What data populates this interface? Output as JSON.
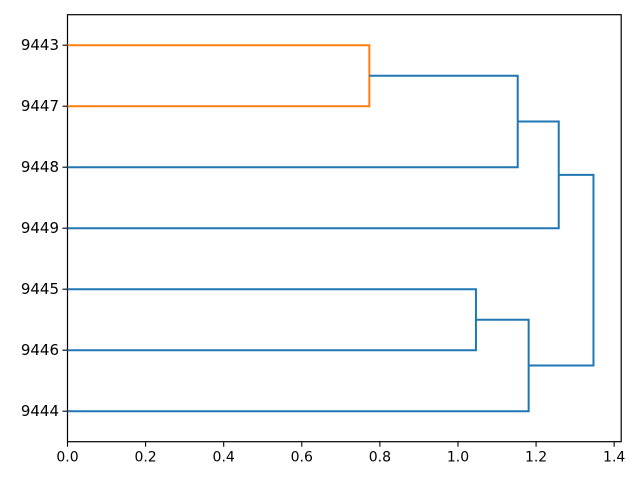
{
  "figure": {
    "background": "#ffffff",
    "title": ""
  },
  "chart_data": {
    "type": "dendrogram",
    "orientation": "right",
    "title": "",
    "xlabel": "",
    "ylabel": "",
    "grid": false,
    "legend": null,
    "xlim": [
      0,
      1.418
    ],
    "ylim": [
      0,
      70
    ],
    "x_ticks": {
      "values": [
        0.0,
        0.2,
        0.4,
        0.6,
        0.8,
        1.0,
        1.2,
        1.4
      ],
      "labels": [
        "0.0",
        "0.2",
        "0.4",
        "0.6",
        "0.8",
        "1.0",
        "1.2",
        "1.4"
      ]
    },
    "leaves": [
      {
        "label": "9443",
        "position": 65
      },
      {
        "label": "9447",
        "position": 55
      },
      {
        "label": "9448",
        "position": 45
      },
      {
        "label": "9449",
        "position": 35
      },
      {
        "label": "9445",
        "position": 25
      },
      {
        "label": "9446",
        "position": 15
      },
      {
        "label": "9444",
        "position": 5
      }
    ],
    "links": [
      {
        "name": "9443+9447",
        "x1": 0,
        "y1": 65,
        "x2": 0,
        "y2": 55,
        "distance": 0.773,
        "color": "#ff7f0e"
      },
      {
        "name": "9445+9446",
        "x1": 0,
        "y1": 25,
        "x2": 0,
        "y2": 15,
        "distance": 1.046,
        "color": "#1f77b4"
      },
      {
        "name": "(9443,9447)+9448",
        "x1": 0.773,
        "y1": 60,
        "x2": 0,
        "y2": 45,
        "distance": 1.153,
        "color": "#1f77b4"
      },
      {
        "name": "(9445,9446)+9444",
        "x1": 1.046,
        "y1": 20,
        "x2": 0,
        "y2": 5,
        "distance": 1.181,
        "color": "#1f77b4"
      },
      {
        "name": "((9443,9447),9448)+9449",
        "x1": 1.153,
        "y1": 52.5,
        "x2": 0,
        "y2": 35,
        "distance": 1.258,
        "color": "#1f77b4"
      },
      {
        "name": "root",
        "x1": 1.258,
        "y1": 43.75,
        "x2": 1.181,
        "y2": 12.5,
        "distance": 1.347,
        "color": "#1f77b4"
      }
    ],
    "colors": {
      "below_threshold_cluster": "#ff7f0e",
      "above_threshold": "#1f77b4",
      "frame": "#000000"
    },
    "line_width": 2
  }
}
